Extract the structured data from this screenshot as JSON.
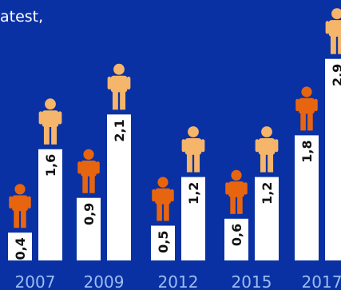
{
  "caption": "atest,",
  "chart_data": {
    "type": "bar",
    "categories": [
      "2007",
      "2009",
      "2012",
      "2015",
      "2017"
    ],
    "series": [
      {
        "values": [
          "0,4",
          "0,9",
          "0,5",
          "0,6",
          "1,8"
        ],
        "numeric": [
          0.4,
          0.9,
          0.5,
          0.6,
          1.8
        ],
        "color": "#e8650f",
        "icon": "person-icon"
      },
      {
        "values": [
          "1,6",
          "2,1",
          "1,2",
          "1,2",
          "2,9"
        ],
        "numeric": [
          1.6,
          2.1,
          1.2,
          1.2,
          2.9
        ],
        "color": "#f5b56a",
        "icon": "person-icon"
      }
    ],
    "bar_color": "#ffffff",
    "background": "#0a31a3",
    "ylim": [
      0,
      3
    ]
  }
}
